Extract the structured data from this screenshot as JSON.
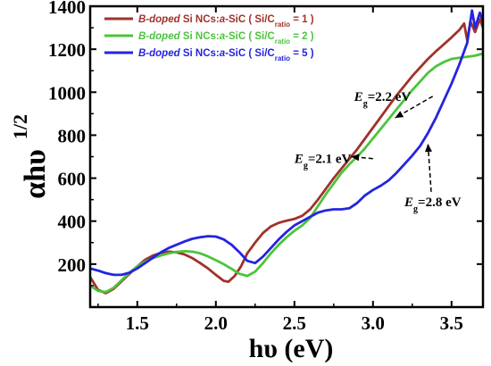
{
  "chart_data": {
    "type": "line",
    "xlabel": "hυ (eV)",
    "ylabel": "αhυ",
    "ylabel_superscript": "1/2",
    "xlim": [
      1.2,
      3.7
    ],
    "ylim": [
      0,
      1400
    ],
    "x_ticks": [
      "1.5",
      "2.0",
      "2.5",
      "3.0",
      "3.5"
    ],
    "x_tick_values": [
      1.5,
      2.0,
      2.5,
      3.0,
      3.5
    ],
    "y_ticks": [
      "200",
      "400",
      "600",
      "800",
      "1000",
      "1200",
      "1400"
    ],
    "y_tick_values": [
      200,
      400,
      600,
      800,
      1000,
      1200,
      1400
    ],
    "grid": false,
    "legend_position": "top-left",
    "series": [
      {
        "legend_italic": "B-doped",
        "legend_plain": " Si NCs:",
        "legend_italic2": "a",
        "legend_plain2": "-SiC ( Si/C",
        "legend_sub": "ratio",
        "legend_end": " = 1 )",
        "color": "#a0322a",
        "x": [
          1.2,
          1.25,
          1.3,
          1.35,
          1.4,
          1.45,
          1.5,
          1.55,
          1.6,
          1.65,
          1.7,
          1.75,
          1.8,
          1.85,
          1.9,
          1.95,
          2.0,
          2.05,
          2.08,
          2.12,
          2.16,
          2.2,
          2.25,
          2.3,
          2.35,
          2.4,
          2.45,
          2.5,
          2.55,
          2.6,
          2.65,
          2.7,
          2.75,
          2.8,
          2.85,
          2.9,
          2.95,
          3.0,
          3.05,
          3.1,
          3.15,
          3.2,
          3.25,
          3.3,
          3.35,
          3.4,
          3.45,
          3.5,
          3.55,
          3.58,
          3.6,
          3.62,
          3.65,
          3.68,
          3.7
        ],
        "y": [
          140,
          80,
          65,
          85,
          120,
          155,
          190,
          220,
          240,
          252,
          258,
          255,
          245,
          228,
          205,
          180,
          150,
          122,
          118,
          145,
          190,
          250,
          300,
          345,
          375,
          392,
          402,
          410,
          425,
          455,
          500,
          550,
          600,
          645,
          690,
          735,
          785,
          835,
          885,
          935,
          985,
          1030,
          1075,
          1115,
          1155,
          1190,
          1222,
          1255,
          1290,
          1320,
          1240,
          1330,
          1280,
          1340,
          1300
        ]
      },
      {
        "legend_italic": "B-doped",
        "legend_plain": " Si NCs:",
        "legend_italic2": "a",
        "legend_plain2": "-SiC ( Si/C",
        "legend_sub": "ratio",
        "legend_end": " = 2 )",
        "color": "#4cc43c",
        "x": [
          1.2,
          1.25,
          1.3,
          1.35,
          1.4,
          1.45,
          1.5,
          1.55,
          1.6,
          1.65,
          1.7,
          1.75,
          1.8,
          1.85,
          1.9,
          1.95,
          2.0,
          2.05,
          2.1,
          2.15,
          2.2,
          2.25,
          2.3,
          2.35,
          2.4,
          2.45,
          2.5,
          2.55,
          2.6,
          2.65,
          2.7,
          2.75,
          2.8,
          2.85,
          2.9,
          2.95,
          3.0,
          3.05,
          3.1,
          3.15,
          3.2,
          3.25,
          3.3,
          3.35,
          3.4,
          3.45,
          3.5,
          3.55,
          3.6,
          3.65,
          3.7
        ],
        "y": [
          100,
          75,
          70,
          90,
          125,
          160,
          190,
          212,
          228,
          240,
          250,
          257,
          260,
          258,
          250,
          236,
          218,
          200,
          178,
          155,
          145,
          165,
          205,
          250,
          290,
          325,
          355,
          380,
          415,
          470,
          525,
          575,
          625,
          665,
          700,
          740,
          785,
          830,
          875,
          920,
          965,
          1010,
          1050,
          1090,
          1120,
          1140,
          1155,
          1160,
          1165,
          1170,
          1180
        ]
      },
      {
        "legend_italic": "B-doped",
        "legend_plain": " Si NCs:",
        "legend_italic2": "a",
        "legend_plain2": "-SiC ( Si/C",
        "legend_sub": "ratio",
        "legend_end": " = 5 )",
        "color": "#2424e0",
        "x": [
          1.2,
          1.25,
          1.3,
          1.35,
          1.4,
          1.45,
          1.5,
          1.55,
          1.6,
          1.65,
          1.7,
          1.75,
          1.8,
          1.85,
          1.9,
          1.95,
          2.0,
          2.05,
          2.1,
          2.15,
          2.2,
          2.25,
          2.3,
          2.35,
          2.4,
          2.45,
          2.5,
          2.55,
          2.6,
          2.65,
          2.7,
          2.75,
          2.8,
          2.85,
          2.9,
          2.95,
          3.0,
          3.05,
          3.1,
          3.15,
          3.2,
          3.25,
          3.3,
          3.35,
          3.4,
          3.45,
          3.5,
          3.55,
          3.6,
          3.63,
          3.65,
          3.68,
          3.7
        ],
        "y": [
          180,
          170,
          158,
          150,
          150,
          160,
          180,
          205,
          230,
          255,
          275,
          290,
          305,
          318,
          325,
          330,
          328,
          315,
          290,
          255,
          215,
          205,
          235,
          275,
          315,
          350,
          380,
          400,
          420,
          440,
          450,
          455,
          455,
          460,
          485,
          520,
          545,
          565,
          590,
          625,
          665,
          705,
          750,
          810,
          880,
          960,
          1040,
          1130,
          1230,
          1380,
          1300,
          1370,
          1330
        ]
      }
    ],
    "annotations": [
      {
        "label_italic": "E",
        "label_sub": "g",
        "label_value": "=2.2 eV",
        "text_x": 2.88,
        "text_y": 960,
        "arrow_x": 3.14,
        "arrow_y": 880
      },
      {
        "label_italic": "E",
        "label_sub": "g",
        "label_value": "=2.1 eV",
        "text_x": 2.5,
        "text_y": 670,
        "arrow_x": 2.86,
        "arrow_y": 700
      },
      {
        "label_italic": "E",
        "label_sub": "g",
        "label_value": "=2.8 eV",
        "text_x": 3.2,
        "text_y": 470,
        "arrow_x": 3.35,
        "arrow_y": 760
      }
    ]
  }
}
